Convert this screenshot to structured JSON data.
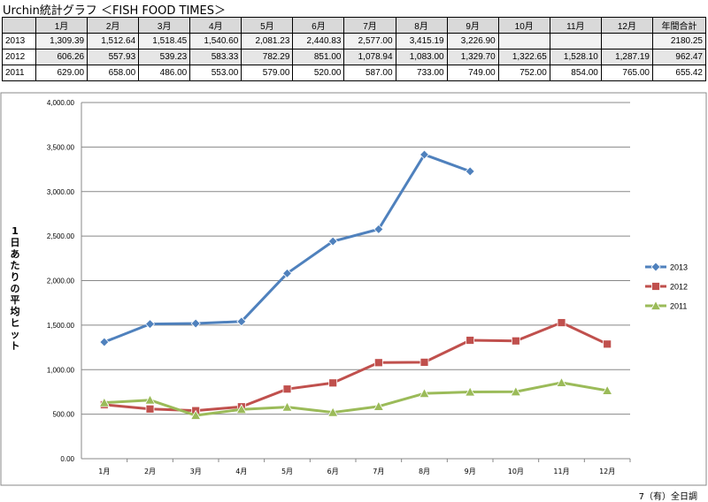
{
  "title": "Urchin統計グラフ ＜FISH FOOD TIMES＞",
  "table": {
    "headers": [
      "",
      "1月",
      "2月",
      "3月",
      "4月",
      "5月",
      "6月",
      "7月",
      "8月",
      "9月",
      "10月",
      "11月",
      "12月",
      "年間合計"
    ],
    "rows": [
      {
        "year": "2013",
        "cells": [
          "1,309.39",
          "1,512.64",
          "1,518.45",
          "1,540.60",
          "2,081.23",
          "2,440.83",
          "2,577.00",
          "3,415.19",
          "3,226.90",
          "",
          "",
          "",
          "2180.25"
        ]
      },
      {
        "year": "2012",
        "cells": [
          "606.26",
          "557.93",
          "539.23",
          "583.33",
          "782.29",
          "851.00",
          "1,078.94",
          "1,083.00",
          "1,329.70",
          "1,322.65",
          "1,528.10",
          "1,287.19",
          "962.47"
        ]
      },
      {
        "year": "2011",
        "cells": [
          "629.00",
          "658.00",
          "486.00",
          "553.00",
          "579.00",
          "520.00",
          "587.00",
          "733.00",
          "749.00",
          "752.00",
          "854.00",
          "765.00",
          "655.42"
        ]
      }
    ]
  },
  "chart_data": {
    "type": "line",
    "title": "",
    "xlabel": "",
    "ylabel": "1日あたりの平均ヒット",
    "categories": [
      "1月",
      "2月",
      "3月",
      "4月",
      "5月",
      "6月",
      "7月",
      "8月",
      "9月",
      "10月",
      "11月",
      "12月"
    ],
    "ylim": [
      0,
      4000
    ],
    "yticks": [
      "0.00",
      "500.00",
      "1,000.00",
      "1,500.00",
      "2,000.00",
      "2,500.00",
      "3,000.00",
      "3,500.00",
      "4,000.00"
    ],
    "grid": true,
    "legend_position": "right",
    "series": [
      {
        "name": "2013",
        "color": "#4f81bd",
        "marker": "diamond",
        "values": [
          1309.39,
          1512.64,
          1518.45,
          1540.6,
          2081.23,
          2440.83,
          2577.0,
          3415.19,
          3226.9,
          null,
          null,
          null
        ]
      },
      {
        "name": "2012",
        "color": "#c0504d",
        "marker": "square",
        "values": [
          606.26,
          557.93,
          539.23,
          583.33,
          782.29,
          851.0,
          1078.94,
          1083.0,
          1329.7,
          1322.65,
          1528.1,
          1287.19
        ]
      },
      {
        "name": "2011",
        "color": "#9bbb59",
        "marker": "triangle",
        "values": [
          629.0,
          658.0,
          486.0,
          553.0,
          579.0,
          520.0,
          587.0,
          733.0,
          749.0,
          752.0,
          854.0,
          765.0
        ]
      }
    ]
  },
  "footer": "7（有）全日調"
}
